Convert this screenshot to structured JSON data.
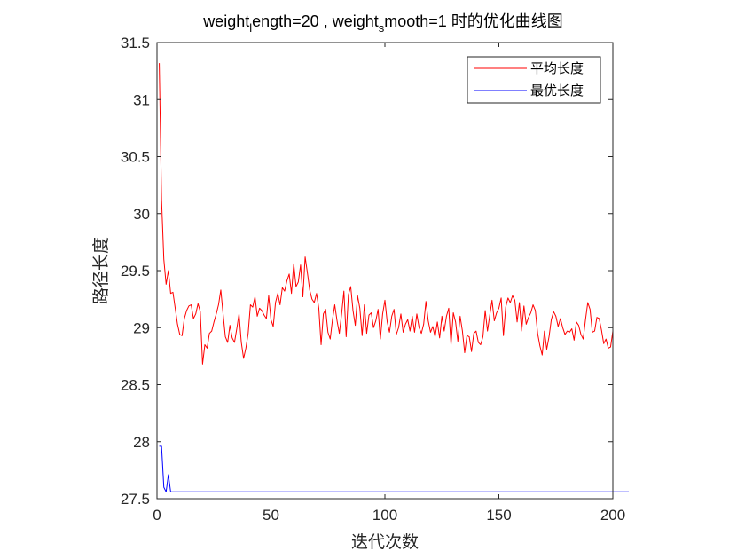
{
  "chart_data": {
    "type": "line",
    "title": "weight_length=20 , weight_smooth=1 时的优化曲线图",
    "title_parts": {
      "p1": "weight",
      "sub1": "l",
      "p2": "ength=20 , weight",
      "sub2": "s",
      "p3": "mooth=1 时的优化曲线图"
    },
    "xlabel": "迭代次数",
    "ylabel": "路径长度",
    "xlim": [
      0,
      200
    ],
    "ylim": [
      27.5,
      31.5
    ],
    "xticks": [
      0,
      50,
      100,
      150,
      200
    ],
    "xtick_labels": [
      "0",
      "50",
      "100",
      "150",
      "200"
    ],
    "yticks": [
      27.5,
      28,
      28.5,
      29,
      29.5,
      30,
      30.5,
      31,
      31.5
    ],
    "ytick_labels": [
      "27.5",
      "28",
      "28.5",
      "29",
      "29.5",
      "30",
      "30.5",
      "31",
      "31.5"
    ],
    "grid": false,
    "box": true,
    "legend_position": "top-right",
    "series": [
      {
        "name": "平均长度",
        "color": "#ff0000",
        "x_start": 1,
        "values": [
          31.32,
          30.12,
          29.6,
          29.38,
          29.5,
          29.3,
          29.31,
          29.17,
          29.03,
          28.94,
          28.93,
          29.08,
          29.15,
          29.19,
          29.2,
          29.08,
          29.12,
          29.21,
          29.14,
          28.68,
          28.85,
          28.82,
          28.95,
          28.97,
          29.05,
          29.12,
          29.2,
          29.33,
          29.12,
          28.92,
          28.87,
          29.02,
          28.91,
          28.87,
          28.99,
          29.12,
          28.87,
          28.73,
          28.82,
          28.95,
          29.2,
          29.18,
          29.27,
          29.1,
          29.17,
          29.15,
          29.11,
          29.08,
          29.28,
          29.07,
          29.01,
          29.22,
          29.3,
          29.2,
          29.35,
          29.32,
          29.41,
          29.47,
          29.3,
          29.56,
          29.36,
          29.4,
          29.55,
          29.27,
          29.62,
          29.48,
          29.33,
          29.25,
          29.22,
          29.3,
          29.17,
          28.85,
          29.12,
          29.16,
          28.96,
          28.9,
          29.07,
          29.2,
          29.06,
          28.95,
          29.12,
          29.32,
          28.92,
          29.29,
          29.36,
          29.15,
          29.02,
          29.28,
          29.17,
          28.93,
          29.2,
          28.95,
          29.11,
          29.13,
          29.0,
          29.06,
          29.16,
          28.9,
          29.12,
          29.24,
          29.05,
          28.96,
          29.1,
          29.16,
          28.94,
          29.0,
          29.12,
          28.96,
          29.03,
          29.07,
          28.97,
          29.1,
          28.96,
          29.12,
          29.0,
          28.95,
          29.03,
          29.23,
          29.06,
          28.96,
          29.01,
          28.92,
          29.05,
          28.91,
          29.1,
          28.97,
          29.1,
          29.17,
          28.85,
          29.13,
          29.05,
          28.88,
          29.1,
          28.97,
          28.78,
          28.93,
          28.92,
          28.79,
          28.95,
          28.97,
          28.87,
          28.85,
          28.92,
          29.15,
          28.97,
          29.11,
          29.24,
          29.06,
          29.13,
          29.17,
          29.26,
          28.93,
          29.18,
          29.26,
          29.22,
          29.28,
          29.24,
          29.05,
          29.22,
          28.97,
          29.19,
          29.03,
          29.09,
          29.13,
          29.2,
          29.15,
          28.95,
          28.84,
          28.76,
          28.97,
          28.81,
          28.92,
          29.07,
          29.14,
          29.1,
          29.01,
          29.08,
          29.0,
          28.94,
          28.97,
          28.96,
          28.99,
          28.89,
          29.05,
          29.02,
          28.94,
          28.9,
          29.07,
          29.22,
          29.16,
          28.96,
          28.97,
          29.09,
          29.08,
          28.98,
          28.86,
          28.9,
          28.82,
          28.83,
          28.97
        ]
      },
      {
        "name": "最优长度",
        "color": "#0000ff",
        "x_start": 1,
        "values": [
          27.96,
          27.96,
          27.6,
          27.56,
          27.71,
          27.56,
          27.56,
          27.56,
          27.56,
          27.56,
          27.56,
          27.56,
          27.56,
          27.56,
          27.56,
          27.56,
          27.56,
          27.56,
          27.56,
          27.56,
          27.56,
          27.56,
          27.56,
          27.56,
          27.56,
          27.56,
          27.56,
          27.56,
          27.56,
          27.56,
          27.56,
          27.56,
          27.56,
          27.56,
          27.56,
          27.56,
          27.56,
          27.56,
          27.56,
          27.56,
          27.56,
          27.56,
          27.56,
          27.56,
          27.56,
          27.56,
          27.56,
          27.56,
          27.56,
          27.56,
          27.56,
          27.56,
          27.56,
          27.56,
          27.56,
          27.56,
          27.56,
          27.56,
          27.56,
          27.56,
          27.56,
          27.56,
          27.56,
          27.56,
          27.56,
          27.56,
          27.56,
          27.56,
          27.56,
          27.56,
          27.56,
          27.56,
          27.56,
          27.56,
          27.56,
          27.56,
          27.56,
          27.56,
          27.56,
          27.56,
          27.56,
          27.56,
          27.56,
          27.56,
          27.56,
          27.56,
          27.56,
          27.56,
          27.56,
          27.56,
          27.56,
          27.56,
          27.56,
          27.56,
          27.56,
          27.56,
          27.56,
          27.56,
          27.56,
          27.56,
          27.56,
          27.56,
          27.56,
          27.56,
          27.56,
          27.56,
          27.56,
          27.56,
          27.56,
          27.56,
          27.56,
          27.56,
          27.56,
          27.56,
          27.56,
          27.56,
          27.56,
          27.56,
          27.56,
          27.56,
          27.56,
          27.56,
          27.56,
          27.56,
          27.56,
          27.56,
          27.56,
          27.56,
          27.56,
          27.56,
          27.56,
          27.56,
          27.56,
          27.56,
          27.56,
          27.56,
          27.56,
          27.56,
          27.56,
          27.56,
          27.56,
          27.56,
          27.56,
          27.56,
          27.56,
          27.56,
          27.56,
          27.56,
          27.56,
          27.56,
          27.56,
          27.56,
          27.56,
          27.56,
          27.56,
          27.56,
          27.56,
          27.56,
          27.56,
          27.56,
          27.56,
          27.56,
          27.56,
          27.56,
          27.56,
          27.56,
          27.56,
          27.56,
          27.56,
          27.56,
          27.56,
          27.56,
          27.56,
          27.56,
          27.56,
          27.56,
          27.56,
          27.56,
          27.56,
          27.56,
          27.56,
          27.56,
          27.56,
          27.56,
          27.56,
          27.56,
          27.56,
          27.56,
          27.56,
          27.56,
          27.56,
          27.56,
          27.56,
          27.56,
          27.56,
          27.56,
          27.56,
          27.56,
          27.56,
          27.56,
          27.56,
          27.56,
          27.56,
          27.56,
          27.56,
          27.56,
          27.56
        ]
      }
    ]
  }
}
